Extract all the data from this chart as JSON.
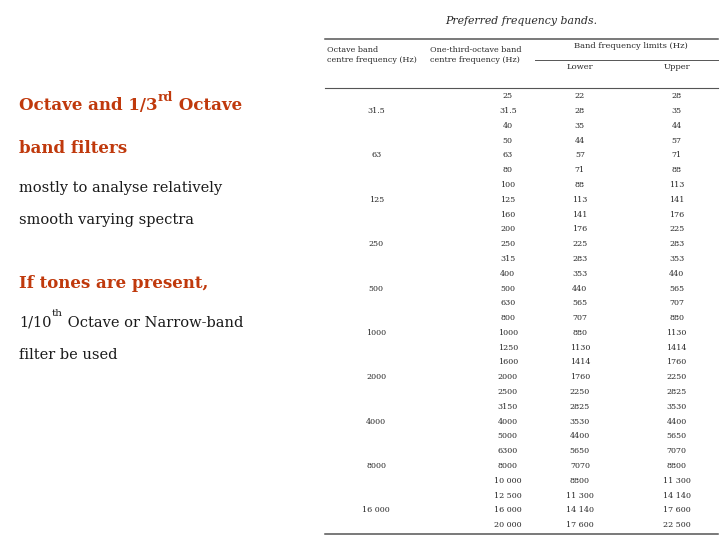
{
  "title": "Preferred frequency bands.",
  "bg_color": "#ffffff",
  "table_data": [
    [
      "",
      "25",
      "22",
      "28"
    ],
    [
      "31.5",
      "31.5",
      "28",
      "35"
    ],
    [
      "",
      "40",
      "35",
      "44"
    ],
    [
      "",
      "50",
      "44",
      "57"
    ],
    [
      "63",
      "63",
      "57",
      "71"
    ],
    [
      "",
      "80",
      "71",
      "88"
    ],
    [
      "",
      "100",
      "88",
      "113"
    ],
    [
      "125",
      "125",
      "113",
      "141"
    ],
    [
      "",
      "160",
      "141",
      "176"
    ],
    [
      "",
      "200",
      "176",
      "225"
    ],
    [
      "250",
      "250",
      "225",
      "283"
    ],
    [
      "",
      "315",
      "283",
      "353"
    ],
    [
      "",
      "400",
      "353",
      "440"
    ],
    [
      "500",
      "500",
      "440",
      "565"
    ],
    [
      "",
      "630",
      "565",
      "707"
    ],
    [
      "",
      "800",
      "707",
      "880"
    ],
    [
      "1000",
      "1000",
      "880",
      "1130"
    ],
    [
      "",
      "1250",
      "1130",
      "1414"
    ],
    [
      "",
      "1600",
      "1414",
      "1760"
    ],
    [
      "2000",
      "2000",
      "1760",
      "2250"
    ],
    [
      "",
      "2500",
      "2250",
      "2825"
    ],
    [
      "",
      "3150",
      "2825",
      "3530"
    ],
    [
      "4000",
      "4000",
      "3530",
      "4400"
    ],
    [
      "",
      "5000",
      "4400",
      "5650"
    ],
    [
      "",
      "6300",
      "5650",
      "7070"
    ],
    [
      "8000",
      "8000",
      "7070",
      "8800"
    ],
    [
      "",
      "10 000",
      "8800",
      "11 300"
    ],
    [
      "",
      "12 500",
      "11 300",
      "14 140"
    ],
    [
      "16 000",
      "16 000",
      "14 140",
      "17 600"
    ],
    [
      "",
      "20 000",
      "17 600",
      "22 500"
    ]
  ],
  "left_title1": "Octave and 1/3",
  "left_title1_sup": "rd",
  "left_title1_rest": " Octave",
  "left_title2": "band filters",
  "left_body1": "mostly to analyse relatively",
  "left_body2": "smooth varying spectra",
  "left_title3": "If tones are present,",
  "left_body3": "1/10",
  "left_body3_sup": "th",
  "left_body3_rest": " Octave or Narrow-band",
  "left_body4": "filter be used",
  "orange_color": "#c0390c",
  "black_color": "#1a1a1a",
  "table_text_color": "#2a2a2a",
  "line_color": "#555555"
}
